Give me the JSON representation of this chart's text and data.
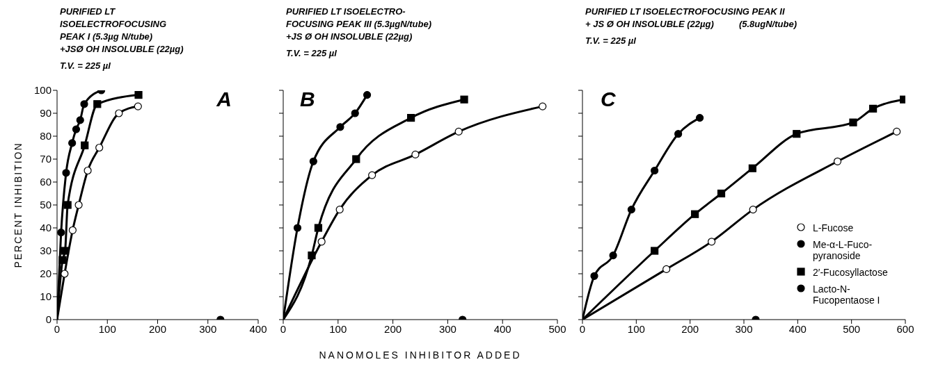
{
  "chart_data": [
    {
      "type": "scatter",
      "title": "PURIFIED LT\nISOELECTROFOCUSING\nPEAK I (5.3µg N/tube)\n+JSØ OH INSOLUBLE (22µg)",
      "subtitle": "T.V. = 225 µl",
      "ylabel": "PERCENT INHIBITION",
      "annotations": [
        "A"
      ],
      "xlim": [
        0,
        400
      ],
      "xticks": [
        0,
        100,
        200,
        300,
        400
      ],
      "ylim": [
        0,
        100
      ],
      "yticks": [
        0,
        10,
        20,
        30,
        40,
        50,
        60,
        70,
        80,
        90,
        100
      ],
      "grid": false,
      "legend": false,
      "series": [
        {
          "type": "line",
          "marker": "none",
          "color": "#000000",
          "x": [
            0,
            8,
            18,
            30,
            38,
            46,
            54,
            88
          ],
          "values": [
            0,
            38,
            64,
            77,
            83,
            87,
            94,
            100
          ]
        },
        {
          "type": "line",
          "marker": "none",
          "color": "#000000",
          "x": [
            0,
            11,
            16,
            21,
            55,
            80,
            162
          ],
          "values": [
            0,
            26,
            30,
            50,
            76,
            94,
            98
          ]
        },
        {
          "type": "line",
          "marker": "none",
          "color": "#000000",
          "x": [
            0,
            15,
            31,
            43,
            61,
            84,
            123,
            161
          ],
          "values": [
            0,
            20,
            39,
            50,
            65,
            75,
            90,
            93
          ]
        },
        {
          "marker": "circle",
          "color": "#ffffff",
          "x": [
            15,
            31,
            43,
            61,
            84,
            123,
            161
          ],
          "values": [
            20,
            39,
            50,
            65,
            75,
            90,
            93
          ]
        },
        {
          "marker": "circle",
          "color": "#000000",
          "x": [
            8,
            18,
            30,
            38,
            46,
            54,
            88
          ],
          "values": [
            38,
            64,
            77,
            83,
            87,
            94,
            100
          ]
        },
        {
          "marker": "square",
          "color": "#000000",
          "x": [
            11,
            16,
            21,
            55,
            80,
            162
          ],
          "values": [
            26,
            30,
            50,
            76,
            94,
            98
          ]
        },
        {
          "marker": "circle",
          "color": "#000000",
          "x": [
            325
          ],
          "values": [
            0
          ]
        }
      ]
    },
    {
      "type": "scatter",
      "title": "PURIFIED LT ISOELECTRO-\nFOCUSING PEAK III (5.3µgN/tube)\n+JS Ø OH INSOLUBLE (22µg)",
      "subtitle": "T.V. = 225 µl",
      "xlabel": "NANOMOLES INHIBITOR ADDED",
      "annotations": [
        "B"
      ],
      "xlim": [
        0,
        500
      ],
      "xticks": [
        0,
        100,
        200,
        300,
        400,
        500
      ],
      "ylim": [
        0,
        100
      ],
      "yticks": [
        0,
        10,
        20,
        30,
        40,
        50,
        60,
        70,
        80,
        90,
        100
      ],
      "tick_labels": "x",
      "grid": false,
      "legend": false,
      "series": [
        {
          "type": "line",
          "marker": "none",
          "color": "#000000",
          "x": [
            0,
            26,
            55,
            104,
            131,
            153
          ],
          "values": [
            0,
            40,
            69,
            84,
            90,
            98
          ]
        },
        {
          "type": "line",
          "marker": "none",
          "color": "#000000",
          "x": [
            0,
            52,
            64,
            133,
            233,
            330
          ],
          "values": [
            0,
            28,
            40,
            70,
            88,
            96
          ]
        },
        {
          "type": "line",
          "marker": "none",
          "color": "#000000",
          "x": [
            0,
            70,
            103,
            162,
            241,
            320,
            473
          ],
          "values": [
            0,
            34,
            48,
            63,
            72,
            82,
            93
          ]
        },
        {
          "marker": "circle",
          "color": "#ffffff",
          "x": [
            70,
            103,
            162,
            241,
            320,
            473
          ],
          "values": [
            34,
            48,
            63,
            72,
            82,
            93
          ]
        },
        {
          "marker": "circle",
          "color": "#000000",
          "x": [
            26,
            55,
            104,
            131,
            153
          ],
          "values": [
            40,
            69,
            84,
            90,
            98
          ]
        },
        {
          "marker": "square",
          "color": "#000000",
          "x": [
            52,
            64,
            133,
            233,
            330
          ],
          "values": [
            28,
            40,
            70,
            88,
            96
          ]
        },
        {
          "marker": "circle",
          "color": "#000000",
          "x": [
            327
          ],
          "values": [
            0
          ]
        }
      ]
    },
    {
      "type": "scatter",
      "title": "PURIFIED LT ISOELECTROFOCUSING PEAK II\n+ JS Ø OH INSOLUBLE (22µg)          (5.8ugN/tube)",
      "subtitle": "T.V. = 225 µl",
      "annotations": [
        "C"
      ],
      "xlim": [
        0,
        600
      ],
      "xticks": [
        0,
        100,
        200,
        300,
        400,
        500,
        600
      ],
      "ylim": [
        0,
        100
      ],
      "yticks": [
        0,
        10,
        20,
        30,
        40,
        50,
        60,
        70,
        80,
        90,
        100
      ],
      "tick_labels": "x",
      "grid": false,
      "legend": "bottom right",
      "series": [
        {
          "type": "line",
          "marker": "none",
          "color": "#000000",
          "x": [
            0,
            22,
            57,
            91,
            134,
            178,
            218
          ],
          "values": [
            0,
            19,
            28,
            48,
            65,
            81,
            88
          ]
        },
        {
          "type": "line",
          "marker": "none",
          "color": "#000000",
          "x": [
            0,
            134,
            209,
            258,
            316,
            398,
            503,
            540,
            597
          ],
          "values": [
            0,
            30,
            46,
            55,
            66,
            81,
            86,
            92,
            96
          ]
        },
        {
          "type": "line",
          "marker": "none",
          "color": "#000000",
          "x": [
            0,
            156,
            240,
            317,
            474,
            584
          ],
          "values": [
            0,
            22,
            34,
            48,
            69,
            82
          ]
        },
        {
          "name": "L-Fucose",
          "marker": "circle",
          "color": "#ffffff",
          "x": [
            156,
            240,
            317,
            474,
            584
          ],
          "values": [
            22,
            34,
            48,
            69,
            82
          ]
        },
        {
          "name": "Me-α-L-Fuco-pyranoside",
          "marker": "circle",
          "color": "#000000",
          "x": [
            22,
            57,
            91,
            134,
            178,
            218
          ],
          "values": [
            19,
            28,
            48,
            65,
            81,
            88
          ]
        },
        {
          "name": "2′-Fucosyllactose",
          "marker": "square",
          "color": "#000000",
          "x": [
            134,
            209,
            258,
            316,
            398,
            503,
            540,
            597
          ],
          "values": [
            30,
            46,
            55,
            66,
            81,
            86,
            92,
            96
          ]
        },
        {
          "name": "Lacto-N-Fucopentaose I",
          "marker": "circle",
          "color": "#000000",
          "x": [
            322
          ],
          "values": [
            0
          ]
        }
      ]
    }
  ]
}
